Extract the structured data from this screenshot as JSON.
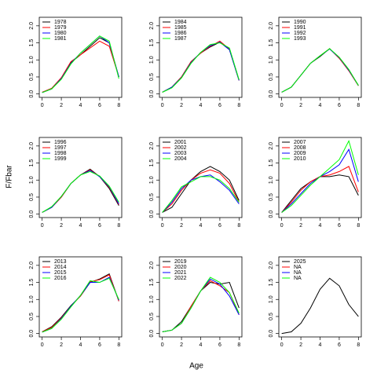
{
  "xlabel": "Age",
  "ylabel": "F/Fbar",
  "chart_data": [
    {
      "type": "line",
      "x": [
        0,
        1,
        2,
        3,
        4,
        5,
        6,
        7,
        8
      ],
      "xlim": [
        -0.3,
        8.3
      ],
      "xticks": [
        0,
        2,
        4,
        6,
        8
      ],
      "ylim": [
        -0.1,
        2.25
      ],
      "yticks": [
        {
          "value": 0,
          "label": "0.0"
        },
        {
          "value": 0.5,
          "label": "0.5"
        },
        {
          "value": 1,
          "label": "1.0"
        },
        {
          "value": 1.5,
          "label": "1.5"
        },
        {
          "value": 2,
          "label": "2.0"
        }
      ],
      "series": [
        {
          "name": "1978",
          "color": "#000000",
          "values": [
            0.05,
            0.15,
            0.45,
            0.92,
            1.15,
            1.4,
            1.65,
            1.5,
            0.5
          ]
        },
        {
          "name": "1979",
          "color": "#ff0000",
          "values": [
            0.05,
            0.17,
            0.48,
            0.95,
            1.15,
            1.35,
            1.55,
            1.4,
            0.5
          ]
        },
        {
          "name": "1980",
          "color": "#0000ff",
          "values": [
            0.04,
            0.15,
            0.45,
            0.9,
            1.2,
            1.45,
            1.7,
            1.5,
            0.5
          ]
        },
        {
          "name": "1981",
          "color": "#00ff00",
          "values": [
            0.04,
            0.15,
            0.43,
            0.88,
            1.2,
            1.45,
            1.7,
            1.55,
            0.45
          ]
        }
      ]
    },
    {
      "type": "line",
      "x": [
        0,
        1,
        2,
        3,
        4,
        5,
        6,
        7,
        8
      ],
      "xlim": [
        -0.3,
        8.3
      ],
      "xticks": [
        0,
        2,
        4,
        6,
        8
      ],
      "ylim": [
        -0.1,
        2.25
      ],
      "yticks": [
        {
          "value": 0,
          "label": "0.0"
        },
        {
          "value": 0.5,
          "label": "0.5"
        },
        {
          "value": 1,
          "label": "1.0"
        },
        {
          "value": 1.5,
          "label": "1.5"
        },
        {
          "value": 2,
          "label": "2.0"
        }
      ],
      "series": [
        {
          "name": "1984",
          "color": "#000000",
          "values": [
            0.05,
            0.2,
            0.5,
            0.95,
            1.2,
            1.38,
            1.52,
            1.3,
            0.4
          ]
        },
        {
          "name": "1985",
          "color": "#ff0000",
          "values": [
            0.05,
            0.2,
            0.5,
            0.95,
            1.2,
            1.4,
            1.55,
            1.32,
            0.4
          ]
        },
        {
          "name": "1986",
          "color": "#0000ff",
          "values": [
            0.05,
            0.2,
            0.48,
            0.92,
            1.22,
            1.42,
            1.52,
            1.3,
            0.4
          ]
        },
        {
          "name": "1987",
          "color": "#00ff00",
          "values": [
            0.05,
            0.18,
            0.47,
            0.9,
            1.22,
            1.45,
            1.5,
            1.35,
            0.42
          ]
        }
      ]
    },
    {
      "type": "line",
      "x": [
        0,
        1,
        2,
        3,
        4,
        5,
        6,
        7,
        8
      ],
      "xlim": [
        -0.3,
        8.3
      ],
      "xticks": [
        0,
        2,
        4,
        6,
        8
      ],
      "ylim": [
        -0.1,
        2.25
      ],
      "yticks": [
        {
          "value": 0,
          "label": "0.0"
        },
        {
          "value": 0.5,
          "label": "0.5"
        },
        {
          "value": 1,
          "label": "1.0"
        },
        {
          "value": 1.5,
          "label": "1.5"
        },
        {
          "value": 2,
          "label": "2.0"
        }
      ],
      "series": [
        {
          "name": "1990",
          "color": "#000000",
          "values": [
            0.05,
            0.2,
            0.55,
            0.9,
            1.1,
            1.33,
            1.05,
            0.7,
            0.25
          ]
        },
        {
          "name": "1991",
          "color": "#ff0000",
          "values": [
            0.05,
            0.2,
            0.55,
            0.9,
            1.12,
            1.33,
            1.05,
            0.68,
            0.24
          ]
        },
        {
          "name": "1992",
          "color": "#0000ff",
          "values": [
            0.05,
            0.2,
            0.55,
            0.9,
            1.12,
            1.32,
            1.07,
            0.7,
            0.25
          ]
        },
        {
          "name": "1993",
          "color": "#00ff00",
          "values": [
            0.05,
            0.2,
            0.55,
            0.9,
            1.12,
            1.33,
            1.08,
            0.72,
            0.25
          ]
        }
      ]
    },
    {
      "type": "line",
      "x": [
        0,
        1,
        2,
        3,
        4,
        5,
        6,
        7,
        8
      ],
      "xlim": [
        -0.3,
        8.3
      ],
      "xticks": [
        0,
        2,
        4,
        6,
        8
      ],
      "ylim": [
        -0.1,
        2.25
      ],
      "yticks": [
        {
          "value": 0,
          "label": "0.0"
        },
        {
          "value": 0.5,
          "label": "0.5"
        },
        {
          "value": 1,
          "label": "1.0"
        },
        {
          "value": 1.5,
          "label": "1.5"
        },
        {
          "value": 2,
          "label": "2.0"
        }
      ],
      "series": [
        {
          "name": "1996",
          "color": "#000000",
          "values": [
            0.05,
            0.2,
            0.5,
            0.9,
            1.15,
            1.32,
            1.1,
            0.75,
            0.25
          ]
        },
        {
          "name": "1997",
          "color": "#ff0000",
          "values": [
            0.05,
            0.2,
            0.5,
            0.9,
            1.15,
            1.3,
            1.1,
            0.78,
            0.28
          ]
        },
        {
          "name": "1998",
          "color": "#0000ff",
          "values": [
            0.05,
            0.2,
            0.52,
            0.9,
            1.15,
            1.28,
            1.1,
            0.8,
            0.3
          ]
        },
        {
          "name": "1999",
          "color": "#00ff00",
          "values": [
            0.05,
            0.22,
            0.52,
            0.9,
            1.15,
            1.25,
            1.12,
            0.82,
            0.35
          ]
        }
      ]
    },
    {
      "type": "line",
      "x": [
        0,
        1,
        2,
        3,
        4,
        5,
        6,
        7,
        8
      ],
      "xlim": [
        -0.3,
        8.3
      ],
      "xticks": [
        0,
        2,
        4,
        6,
        8
      ],
      "ylim": [
        -0.1,
        2.25
      ],
      "yticks": [
        {
          "value": 0,
          "label": "0.0"
        },
        {
          "value": 0.5,
          "label": "0.5"
        },
        {
          "value": 1,
          "label": "1.0"
        },
        {
          "value": 1.5,
          "label": "1.5"
        },
        {
          "value": 2,
          "label": "2.0"
        }
      ],
      "series": [
        {
          "name": "2001",
          "color": "#000000",
          "values": [
            0.05,
            0.2,
            0.6,
            1.0,
            1.25,
            1.4,
            1.25,
            1.0,
            0.4
          ]
        },
        {
          "name": "2002",
          "color": "#ff0000",
          "values": [
            0.05,
            0.3,
            0.7,
            1.0,
            1.2,
            1.3,
            1.2,
            0.9,
            0.35
          ]
        },
        {
          "name": "2003",
          "color": "#0000ff",
          "values": [
            0.05,
            0.35,
            0.75,
            1.0,
            1.1,
            1.15,
            0.95,
            0.7,
            0.3
          ]
        },
        {
          "name": "2004",
          "color": "#00ff00",
          "values": [
            0.05,
            0.4,
            0.8,
            0.95,
            1.1,
            1.1,
            1.0,
            0.75,
            0.35
          ]
        }
      ]
    },
    {
      "type": "line",
      "x": [
        0,
        1,
        2,
        3,
        4,
        5,
        6,
        7,
        8
      ],
      "xlim": [
        -0.3,
        8.3
      ],
      "xticks": [
        0,
        2,
        4,
        6,
        8
      ],
      "ylim": [
        -0.1,
        2.25
      ],
      "yticks": [
        {
          "value": 0,
          "label": "0.0"
        },
        {
          "value": 0.5,
          "label": "0.5"
        },
        {
          "value": 1,
          "label": "1.0"
        },
        {
          "value": 1.5,
          "label": "1.5"
        },
        {
          "value": 2,
          "label": "2.0"
        }
      ],
      "series": [
        {
          "name": "2007",
          "color": "#000000",
          "values": [
            0.05,
            0.4,
            0.75,
            0.95,
            1.1,
            1.1,
            1.15,
            1.1,
            0.55
          ]
        },
        {
          "name": "2008",
          "color": "#ff0000",
          "values": [
            0.05,
            0.35,
            0.7,
            0.95,
            1.1,
            1.15,
            1.25,
            1.4,
            0.65
          ]
        },
        {
          "name": "2009",
          "color": "#0000ff",
          "values": [
            0.05,
            0.3,
            0.6,
            0.9,
            1.1,
            1.25,
            1.45,
            1.9,
            0.95
          ]
        },
        {
          "name": "2010",
          "color": "#00ff00",
          "values": [
            0.05,
            0.25,
            0.55,
            0.85,
            1.1,
            1.35,
            1.6,
            2.15,
            1.15
          ]
        }
      ]
    },
    {
      "type": "line",
      "x": [
        0,
        1,
        2,
        3,
        4,
        5,
        6,
        7,
        8
      ],
      "xlim": [
        -0.3,
        8.3
      ],
      "xticks": [
        0,
        2,
        4,
        6,
        8
      ],
      "ylim": [
        -0.1,
        2.25
      ],
      "yticks": [
        {
          "value": 0,
          "label": "0.0"
        },
        {
          "value": 0.5,
          "label": "0.5"
        },
        {
          "value": 1,
          "label": "1.0"
        },
        {
          "value": 1.5,
          "label": "1.5"
        },
        {
          "value": 2,
          "label": "2.0"
        }
      ],
      "series": [
        {
          "name": "2013",
          "color": "#000000",
          "values": [
            0.05,
            0.2,
            0.48,
            0.82,
            1.1,
            1.5,
            1.6,
            1.75,
            0.95
          ]
        },
        {
          "name": "2014",
          "color": "#ff0000",
          "values": [
            0.05,
            0.18,
            0.46,
            0.8,
            1.1,
            1.52,
            1.58,
            1.72,
            0.95
          ]
        },
        {
          "name": "2015",
          "color": "#0000ff",
          "values": [
            0.04,
            0.15,
            0.44,
            0.8,
            1.12,
            1.5,
            1.5,
            1.65,
            0.98
          ]
        },
        {
          "name": "2016",
          "color": "#00ff00",
          "values": [
            0.04,
            0.15,
            0.42,
            0.78,
            1.12,
            1.55,
            1.5,
            1.62,
            1.0
          ]
        }
      ]
    },
    {
      "type": "line",
      "x": [
        0,
        1,
        2,
        3,
        4,
        5,
        6,
        7,
        8
      ],
      "xlim": [
        -0.3,
        8.3
      ],
      "xticks": [
        0,
        2,
        4,
        6,
        8
      ],
      "ylim": [
        -0.1,
        2.25
      ],
      "yticks": [
        {
          "value": 0,
          "label": "0.0"
        },
        {
          "value": 0.5,
          "label": "0.5"
        },
        {
          "value": 1,
          "label": "1.0"
        },
        {
          "value": 1.5,
          "label": "1.5"
        },
        {
          "value": 2,
          "label": "2.0"
        }
      ],
      "series": [
        {
          "name": "2019",
          "color": "#000000",
          "values": [
            0.05,
            0.1,
            0.35,
            0.8,
            1.25,
            1.5,
            1.45,
            1.5,
            0.75
          ]
        },
        {
          "name": "2020",
          "color": "#ff0000",
          "values": [
            0.05,
            0.1,
            0.3,
            0.8,
            1.25,
            1.55,
            1.4,
            1.2,
            0.55
          ]
        },
        {
          "name": "2021",
          "color": "#0000ff",
          "values": [
            0.05,
            0.1,
            0.3,
            0.75,
            1.25,
            1.6,
            1.45,
            1.1,
            0.55
          ]
        },
        {
          "name": "2022",
          "color": "#00ff00",
          "values": [
            0.05,
            0.1,
            0.3,
            0.75,
            1.25,
            1.65,
            1.5,
            1.2,
            0.6
          ]
        }
      ]
    },
    {
      "type": "line",
      "x": [
        0,
        1,
        2,
        3,
        4,
        5,
        6,
        7,
        8
      ],
      "xlim": [
        -0.3,
        8.3
      ],
      "xticks": [
        0,
        2,
        4,
        6,
        8
      ],
      "ylim": [
        -0.1,
        2.25
      ],
      "yticks": [
        {
          "value": 0,
          "label": "0.0"
        },
        {
          "value": 0.5,
          "label": "0.5"
        },
        {
          "value": 1,
          "label": "1.0"
        },
        {
          "value": 1.5,
          "label": "1.5"
        },
        {
          "value": 2,
          "label": "2.0"
        }
      ],
      "series": [
        {
          "name": "2025",
          "color": "#000000",
          "values": [
            0.0,
            0.05,
            0.3,
            0.75,
            1.3,
            1.62,
            1.4,
            0.85,
            0.5
          ]
        },
        {
          "name": "NA",
          "color": "#ff0000",
          "values": [
            null,
            null,
            null,
            null,
            null,
            null,
            null,
            null,
            null
          ]
        },
        {
          "name": "NA",
          "color": "#0000ff",
          "values": [
            null,
            null,
            null,
            null,
            null,
            null,
            null,
            null,
            null
          ]
        },
        {
          "name": "NA",
          "color": "#00ff00",
          "values": [
            null,
            null,
            null,
            null,
            null,
            null,
            null,
            null,
            null
          ]
        }
      ]
    }
  ]
}
